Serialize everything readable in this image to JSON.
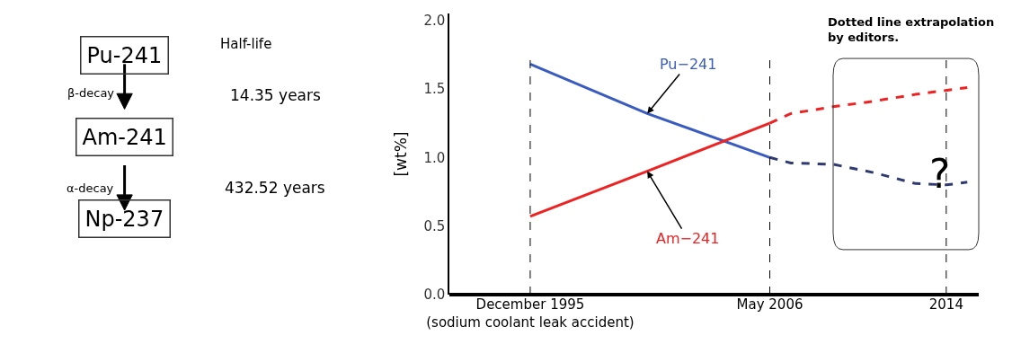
{
  "chart_data": [
    {
      "type": "other",
      "annotations": [
        "Pu-241",
        "Half-life",
        "β-decay",
        "14.35 years",
        "Am-241",
        "α-decay",
        "432.52 years",
        "Np-237"
      ]
    },
    {
      "type": "line",
      "ylabel": "[wt%]",
      "ylim": [
        0,
        2.05
      ],
      "yticks": [
        {
          "value": 0,
          "label": "0.0"
        },
        {
          "value": 0.5,
          "label": "0.5"
        },
        {
          "value": 1,
          "label": "1.0"
        },
        {
          "value": 1.5,
          "label": "1.5"
        },
        {
          "value": 2,
          "label": "2.0"
        }
      ],
      "xlim": [
        "1992-06",
        "2015-06"
      ],
      "xticks": [
        {
          "value": "1995-12",
          "label": "December 1995\n(sodium coolant leak accident)"
        },
        {
          "value": "2006-05",
          "label": "May 2006"
        },
        {
          "value": "2014",
          "label": "2014"
        }
      ],
      "series": [
        {
          "name": "Pu−241",
          "color": "#3a5cc0",
          "line_style": "solid",
          "x": [
            "1995-12",
            "2001-01",
            "2006-05"
          ],
          "values": [
            1.68,
            1.32,
            1.0
          ]
        },
        {
          "color": "#2e3a70",
          "line_style": "dashed",
          "x": [
            "2006-05",
            "2007-04",
            "2009-02",
            "2010-11",
            "2012-09",
            "2014",
            "2014-12"
          ],
          "values": [
            1.0,
            0.96,
            0.95,
            0.89,
            0.81,
            0.8,
            0.82
          ]
        },
        {
          "name": "Am−241",
          "color": "#ee2222",
          "line_style": "solid",
          "x": [
            "1995-12",
            "2001-01",
            "2006-05"
          ],
          "values": [
            0.57,
            0.9,
            1.25
          ]
        },
        {
          "color": "#ee2222",
          "line_style": "dashed",
          "x": [
            "2006-05",
            "2007-04",
            "2009-02",
            "2010-11",
            "2012-09",
            "2014-12"
          ],
          "values": [
            1.25,
            1.32,
            1.37,
            1.41,
            1.46,
            1.51
          ]
        }
      ],
      "ref_lines": [
        {
          "axis": "x",
          "value": "1995-12",
          "line_style": "dashed",
          "color": "#000000"
        },
        {
          "axis": "x",
          "value": "2006-05",
          "line_style": "dashed",
          "color": "#000000"
        },
        {
          "axis": "x",
          "value": "2014",
          "line_style": "dashed",
          "color": "#000000"
        }
      ],
      "annotations": [
        "Dotted line extrapolation\nby editors.",
        "?"
      ],
      "marker": "none"
    }
  ]
}
